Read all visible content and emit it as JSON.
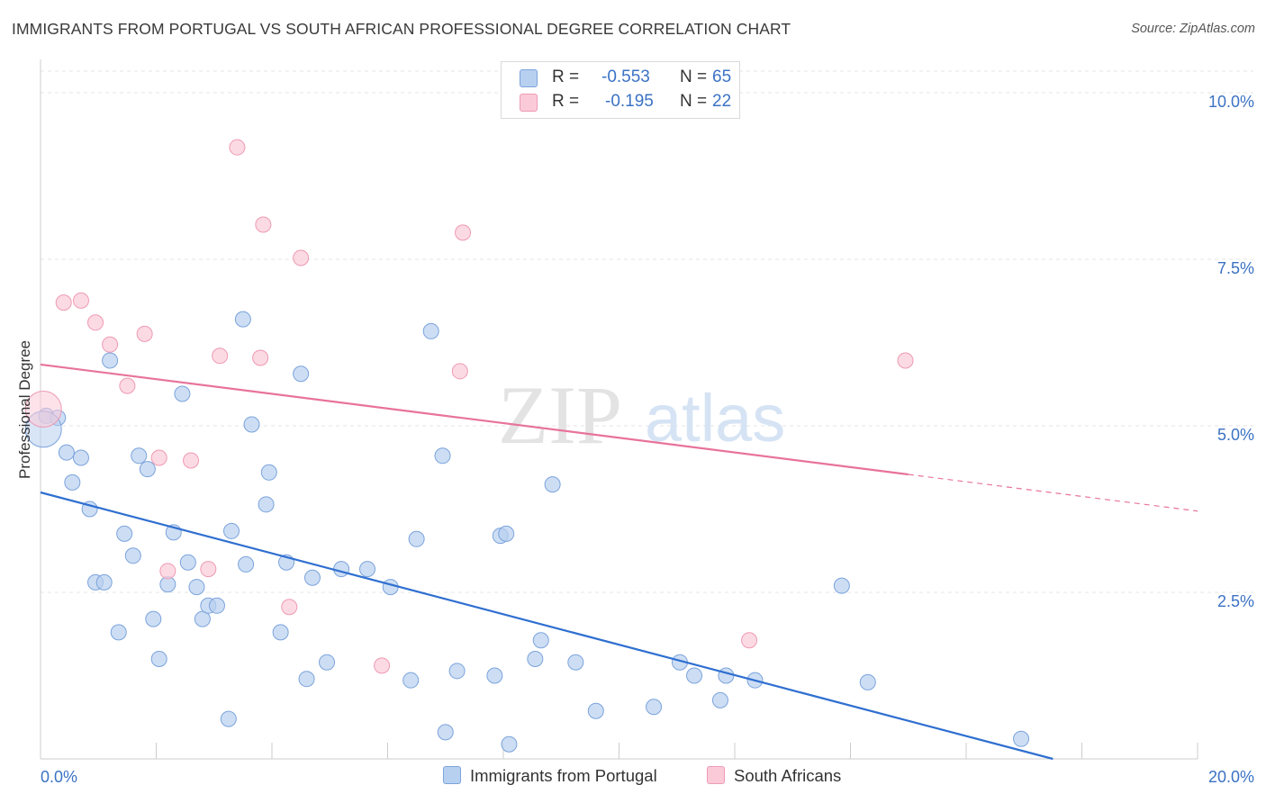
{
  "title": "IMMIGRANTS FROM PORTUGAL VS SOUTH AFRICAN PROFESSIONAL DEGREE CORRELATION CHART",
  "source": "Source: ZipAtlas.com",
  "watermark": {
    "zip": "ZIP",
    "atlas": "atlas"
  },
  "legend": {
    "rows": [
      {
        "r_label": "R =",
        "r_value": "-0.553",
        "n_label": "N =",
        "n_value": "65",
        "color": "#b8d0f0",
        "border": "#7ba3dc"
      },
      {
        "r_label": "R =",
        "r_value": "-0.195",
        "n_label": "N =",
        "n_value": "22",
        "color": "#fbcad8",
        "border": "#ee9ab3"
      }
    ]
  },
  "chart_data": {
    "type": "scatter",
    "title": "IMMIGRANTS FROM PORTUGAL VS SOUTH AFRICAN PROFESSIONAL DEGREE CORRELATION CHART",
    "xlabel": "",
    "ylabel": "Professional Degree",
    "xlim": [
      0,
      20
    ],
    "ylim": [
      0,
      10.5
    ],
    "x_tick_labels": [
      "0.0%",
      "20.0%"
    ],
    "y_ticks": [
      2.5,
      5.0,
      7.5,
      10.0
    ],
    "y_tick_labels": [
      "2.5%",
      "5.0%",
      "7.5%",
      "10.0%"
    ],
    "grid": true,
    "legend_position": "top-center",
    "series": [
      {
        "name": "Immigrants from Portugal",
        "color": "#b8d0f0",
        "stroke": "#7ba3dc",
        "trend_color": "#2f6fd0",
        "trend": {
          "x0": 0.0,
          "y0": 4.0,
          "x1": 17.5,
          "y1": 0.0,
          "dash_until": 17.5
        },
        "points": [
          [
            0.1,
            5.15
          ],
          [
            0.3,
            5.12
          ],
          [
            0.45,
            4.6
          ],
          [
            0.55,
            4.15
          ],
          [
            0.7,
            4.52
          ],
          [
            0.85,
            3.75
          ],
          [
            0.95,
            2.65
          ],
          [
            1.1,
            2.65
          ],
          [
            1.2,
            5.98
          ],
          [
            1.35,
            1.9
          ],
          [
            1.45,
            3.38
          ],
          [
            1.6,
            3.05
          ],
          [
            1.7,
            4.55
          ],
          [
            1.85,
            4.35
          ],
          [
            1.95,
            2.1
          ],
          [
            2.05,
            1.5
          ],
          [
            2.2,
            2.62
          ],
          [
            2.3,
            3.4
          ],
          [
            2.45,
            5.48
          ],
          [
            2.55,
            2.95
          ],
          [
            2.7,
            2.58
          ],
          [
            2.8,
            2.1
          ],
          [
            2.9,
            2.3
          ],
          [
            3.05,
            2.3
          ],
          [
            3.25,
            0.6
          ],
          [
            3.3,
            3.42
          ],
          [
            3.5,
            6.6
          ],
          [
            3.55,
            2.92
          ],
          [
            3.65,
            5.02
          ],
          [
            3.9,
            3.82
          ],
          [
            3.95,
            4.3
          ],
          [
            4.15,
            1.9
          ],
          [
            4.25,
            2.95
          ],
          [
            4.5,
            5.78
          ],
          [
            4.6,
            1.2
          ],
          [
            4.7,
            2.72
          ],
          [
            4.95,
            1.45
          ],
          [
            5.2,
            2.85
          ],
          [
            5.65,
            2.85
          ],
          [
            6.05,
            2.58
          ],
          [
            6.4,
            1.18
          ],
          [
            6.5,
            3.3
          ],
          [
            6.75,
            6.42
          ],
          [
            6.95,
            4.55
          ],
          [
            7.0,
            0.4
          ],
          [
            7.2,
            1.32
          ],
          [
            7.85,
            1.25
          ],
          [
            7.95,
            3.35
          ],
          [
            8.05,
            3.38
          ],
          [
            8.1,
            0.22
          ],
          [
            8.55,
            1.5
          ],
          [
            8.65,
            1.78
          ],
          [
            8.85,
            4.12
          ],
          [
            9.25,
            1.45
          ],
          [
            9.6,
            0.72
          ],
          [
            10.6,
            0.78
          ],
          [
            11.05,
            1.45
          ],
          [
            11.3,
            1.25
          ],
          [
            11.75,
            0.88
          ],
          [
            11.85,
            1.25
          ],
          [
            12.35,
            1.18
          ],
          [
            13.85,
            2.6
          ],
          [
            14.3,
            1.15
          ],
          [
            16.95,
            0.3
          ],
          [
            0.05,
            4.95
          ]
        ]
      },
      {
        "name": "South Africans",
        "color": "#fbcad8",
        "stroke": "#ee9ab3",
        "trend_color": "#e8739a",
        "trend": {
          "x0": 0.0,
          "y0": 5.92,
          "x1": 20.0,
          "y1": 3.72,
          "dash_after": 15.0
        },
        "points": [
          [
            0.05,
            5.25
          ],
          [
            0.4,
            6.85
          ],
          [
            0.7,
            6.88
          ],
          [
            0.95,
            6.55
          ],
          [
            1.2,
            6.22
          ],
          [
            1.5,
            5.6
          ],
          [
            1.8,
            6.38
          ],
          [
            2.05,
            4.52
          ],
          [
            2.2,
            2.82
          ],
          [
            2.6,
            4.48
          ],
          [
            2.9,
            2.85
          ],
          [
            3.1,
            6.05
          ],
          [
            3.4,
            9.18
          ],
          [
            3.8,
            6.02
          ],
          [
            3.85,
            8.02
          ],
          [
            4.3,
            2.28
          ],
          [
            4.5,
            7.52
          ],
          [
            5.9,
            1.4
          ],
          [
            7.25,
            5.82
          ],
          [
            7.3,
            7.9
          ],
          [
            12.25,
            1.78
          ],
          [
            14.95,
            5.98
          ]
        ]
      }
    ]
  },
  "bottom_legend": [
    {
      "label": "Immigrants from Portugal",
      "color": "#b8d0f0",
      "border": "#7ba3dc"
    },
    {
      "label": "South Africans",
      "color": "#fbcad8",
      "border": "#ee9ab3"
    }
  ],
  "colors": {
    "axis_tick_text": "#3b72c4",
    "grid": "#e4e4e4",
    "axis": "#cccccc"
  }
}
